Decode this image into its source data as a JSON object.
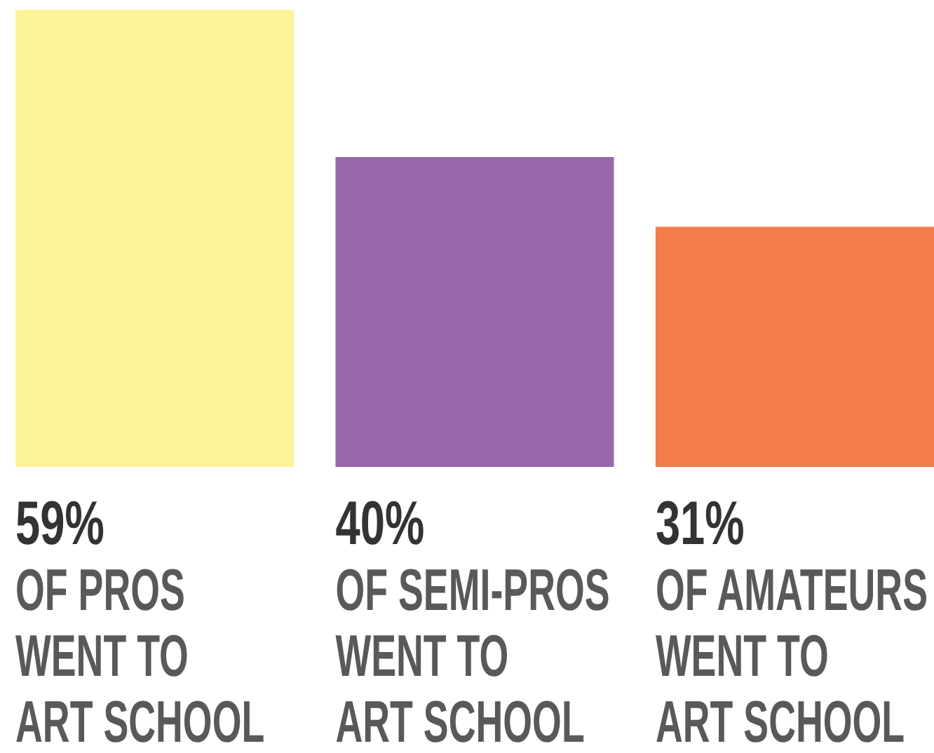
{
  "chart_data": {
    "type": "bar",
    "categories": [
      "OF PROS\nWENT TO\nART SCHOOL",
      "OF SEMI-PROS\nWENT TO\nART SCHOOL",
      "OF AMATEURS\nWENT TO\nART SCHOOL"
    ],
    "values": [
      59,
      40,
      31
    ],
    "colors": [
      "#fdf498",
      "#9a67ab",
      "#f27c4a"
    ],
    "value_labels": [
      "59%",
      "40%",
      "31%"
    ]
  }
}
